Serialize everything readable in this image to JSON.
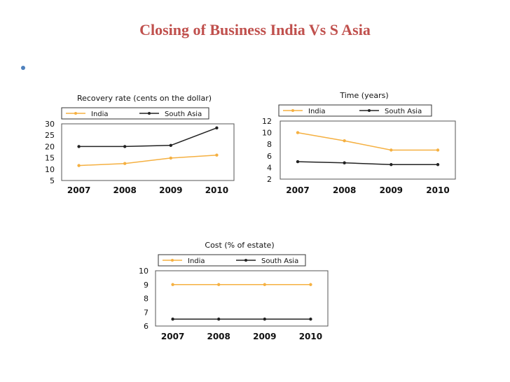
{
  "slide": {
    "title": "Closing of Business India Vs S Asia"
  },
  "chart_data": [
    {
      "type": "line",
      "title": "Recovery rate (cents on the dollar)",
      "categories": [
        "2007",
        "2008",
        "2009",
        "2010"
      ],
      "y_ticks": [
        "30",
        "25",
        "20",
        "15",
        "10",
        "5"
      ],
      "ylim": [
        5,
        30
      ],
      "series": [
        {
          "name": "India",
          "color": "#f5b041",
          "values": [
            11.6,
            12.5,
            14.9,
            16.2
          ]
        },
        {
          "name": "South Asia",
          "color": "#222222",
          "values": [
            20.0,
            20.0,
            20.5,
            28.2
          ]
        }
      ],
      "legend": "top"
    },
    {
      "type": "line",
      "title": "Time (years)",
      "categories": [
        "2007",
        "2008",
        "2009",
        "2010"
      ],
      "y_ticks": [
        "12",
        "10",
        "8",
        "6",
        "4",
        "2"
      ],
      "ylim": [
        2,
        12
      ],
      "series": [
        {
          "name": "India",
          "color": "#f5b041",
          "values": [
            10,
            8.6,
            7,
            7
          ]
        },
        {
          "name": "South Asia",
          "color": "#222222",
          "values": [
            5,
            4.8,
            4.5,
            4.5
          ]
        }
      ],
      "legend": "top"
    },
    {
      "type": "line",
      "title": "Cost (% of estate)",
      "categories": [
        "2007",
        "2008",
        "2009",
        "2010"
      ],
      "y_ticks": [
        "10",
        "9",
        "8",
        "7",
        "6"
      ],
      "ylim": [
        6,
        10
      ],
      "series": [
        {
          "name": "India",
          "color": "#f5b041",
          "values": [
            9,
            9,
            9,
            9
          ]
        },
        {
          "name": "South Asia",
          "color": "#222222",
          "values": [
            6.5,
            6.5,
            6.5,
            6.5
          ]
        }
      ],
      "legend": "top"
    }
  ]
}
